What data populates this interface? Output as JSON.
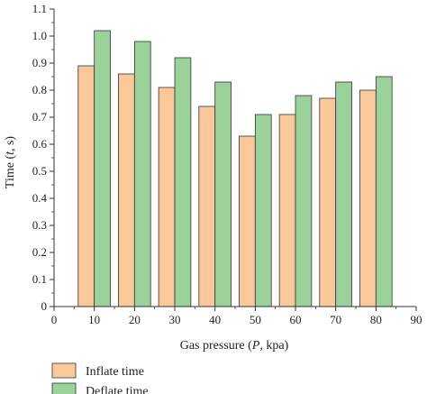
{
  "chart_data": {
    "type": "bar",
    "title": "",
    "xlabel_parts": [
      "Gas pressure (",
      "P",
      ", kpa)"
    ],
    "ylabel_parts": [
      "Time (",
      "t",
      ", s)"
    ],
    "x": [
      10,
      20,
      30,
      40,
      50,
      60,
      70,
      80
    ],
    "xlim": [
      0,
      90
    ],
    "ylim": [
      0,
      1.1
    ],
    "xticks": [
      "0",
      "10",
      "20",
      "30",
      "40",
      "50",
      "60",
      "70",
      "80",
      "90"
    ],
    "yticks": [
      "0",
      "0.1",
      "0.2",
      "0.3",
      "0.4",
      "0.5",
      "0.6",
      "0.7",
      "0.8",
      "0.9",
      "1.0",
      "1.1"
    ],
    "grid": false,
    "legend_position": "bottom-left",
    "series": [
      {
        "name": "Inflate time",
        "color": "#fbc999",
        "values": [
          0.89,
          0.86,
          0.81,
          0.74,
          0.63,
          0.71,
          0.77,
          0.8
        ]
      },
      {
        "name": "Deflate time",
        "color": "#9ad29a",
        "values": [
          1.02,
          0.98,
          0.92,
          0.83,
          0.71,
          0.78,
          0.83,
          0.85
        ]
      }
    ]
  }
}
